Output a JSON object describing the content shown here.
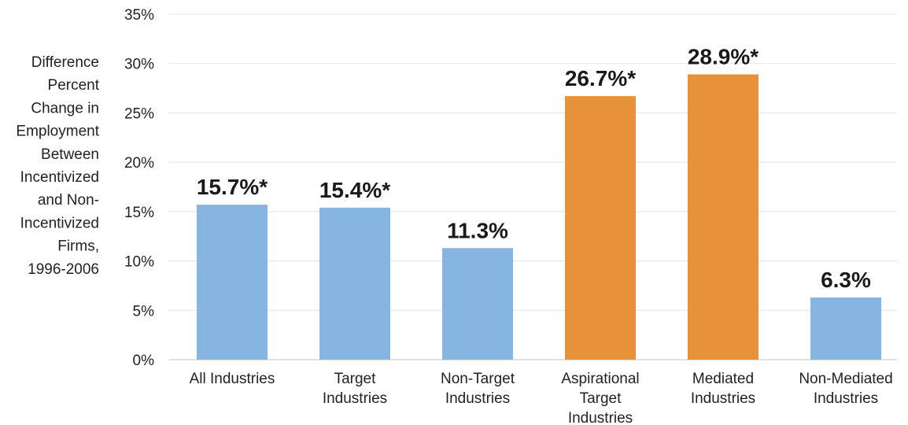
{
  "chart_data": {
    "type": "bar",
    "ylabel_lines": [
      "Difference",
      "Percent",
      "Change in",
      "Employment",
      "Between",
      "Incentivized",
      "and Non-",
      "Incentivized",
      "Firms,",
      "1996-2006"
    ],
    "ylim": [
      0,
      35
    ],
    "yticks": [
      {
        "value": 0,
        "label": "0%"
      },
      {
        "value": 5,
        "label": "5%"
      },
      {
        "value": 10,
        "label": "10%"
      },
      {
        "value": 15,
        "label": "15%"
      },
      {
        "value": 20,
        "label": "20%"
      },
      {
        "value": 25,
        "label": "25%"
      },
      {
        "value": 30,
        "label": "30%"
      },
      {
        "value": 35,
        "label": "35%"
      }
    ],
    "grid": true,
    "legend": "none",
    "bars": [
      {
        "category": [
          "All Industries"
        ],
        "value": 15.7,
        "label": "15.7%*",
        "color": "#85b5e0"
      },
      {
        "category": [
          "Target",
          "Industries"
        ],
        "value": 15.4,
        "label": "15.4%*",
        "color": "#85b5e0"
      },
      {
        "category": [
          "Non-Target",
          "Industries"
        ],
        "value": 11.3,
        "label": "11.3%",
        "color": "#85b5e0"
      },
      {
        "category": [
          "Aspirational",
          "Target",
          "Industries"
        ],
        "value": 26.7,
        "label": "26.7%*",
        "color": "#e59238"
      },
      {
        "category": [
          "Mediated",
          "Industries"
        ],
        "value": 28.9,
        "label": "28.9%*",
        "color": "#e59238"
      },
      {
        "category": [
          "Non-Mediated",
          "Industries"
        ],
        "value": 6.3,
        "label": "6.3%",
        "color": "#85b5e0"
      }
    ]
  }
}
